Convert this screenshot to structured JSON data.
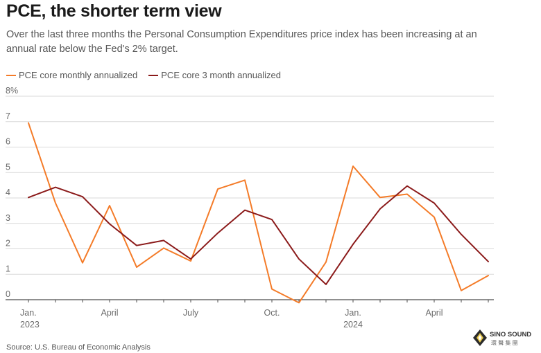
{
  "title": "PCE, the shorter term view",
  "subtitle": "Over the last three months the Personal Consumption Expenditures price index has been increasing at an annual rate below the Fed's 2% target.",
  "source": "Source: U.S. Bureau of Economic Analysis",
  "logo": {
    "name": "SINO SOUND",
    "sub": "環 聲 集 團"
  },
  "colors": {
    "monthly": "#f47b28",
    "three_month": "#8b1a1a",
    "grid": "#d9d9d9",
    "axis": "#4d4d4d"
  },
  "chart_data": {
    "type": "line",
    "title": "PCE, the shorter term view",
    "xlabel": "",
    "ylabel": "",
    "ylim": [
      0,
      8
    ],
    "y_ticks": [
      "0",
      "1",
      "2",
      "3",
      "4",
      "5",
      "6",
      "7",
      "8%"
    ],
    "x_ticks": [
      {
        "index": 0,
        "label": "Jan.",
        "sublabel": "2023"
      },
      {
        "index": 3,
        "label": "April",
        "sublabel": ""
      },
      {
        "index": 6,
        "label": "July",
        "sublabel": ""
      },
      {
        "index": 9,
        "label": "Oct.",
        "sublabel": ""
      },
      {
        "index": 12,
        "label": "Jan.",
        "sublabel": "2024"
      },
      {
        "index": 15,
        "label": "April",
        "sublabel": ""
      }
    ],
    "x": [
      "2023-01",
      "2023-02",
      "2023-03",
      "2023-04",
      "2023-05",
      "2023-06",
      "2023-07",
      "2023-08",
      "2023-09",
      "2023-10",
      "2023-11",
      "2023-12",
      "2024-01",
      "2024-02",
      "2024-03",
      "2024-04",
      "2024-05",
      "2024-06"
    ],
    "series": [
      {
        "name": "PCE core monthly annualized",
        "color": "#f47b28",
        "values": [
          6.95,
          3.8,
          1.45,
          3.7,
          1.28,
          2.03,
          1.52,
          4.35,
          4.7,
          0.42,
          -0.12,
          1.48,
          5.25,
          4.02,
          4.15,
          3.25,
          0.36,
          0.95
        ]
      },
      {
        "name": "PCE core 3 month annualized",
        "color": "#8b1a1a",
        "values": [
          4.02,
          4.42,
          4.05,
          2.98,
          2.13,
          2.33,
          1.6,
          2.62,
          3.52,
          3.15,
          1.6,
          0.6,
          2.18,
          3.57,
          4.47,
          3.8,
          2.57,
          1.5
        ]
      }
    ]
  }
}
